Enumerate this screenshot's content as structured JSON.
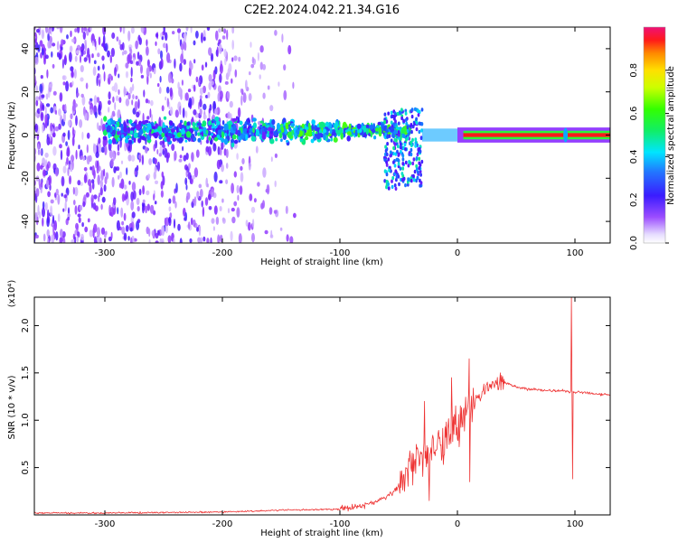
{
  "title": "C2E2.2024.042.21.34.G16",
  "colors": {
    "snr_line": "#ee3333",
    "spectrum_low": "#ece2ff",
    "spectrum_mid": "#7a1df2",
    "spectrum_high": "#e8155f"
  },
  "chart_data": [
    {
      "type": "heatmap",
      "title": "",
      "xlabel": "Height of straight line (km)",
      "ylabel": "Frequency (Hz)",
      "xlim": [
        -360,
        130
      ],
      "ylim": [
        -50,
        50
      ],
      "x_ticks": [
        -300,
        -200,
        -100,
        0,
        100
      ],
      "y_ticks": [
        -40,
        -20,
        0,
        20,
        40
      ],
      "grid": false,
      "colorbar": {
        "label": "Normalized spectral amplitude",
        "range": [
          0,
          1
        ],
        "ticks": [
          "0.0",
          "0.2",
          "0.4",
          "0.6",
          "0.8"
        ],
        "colormap": "rainbow (purple-blue-cyan-green-yellow-orange-red-pink)"
      },
      "features": [
        {
          "x_range": [
            -360,
            -130
          ],
          "freq_range_hz": [
            -50,
            50
          ],
          "amplitude": "0.1-0.4",
          "note": "scattered broadband noise"
        },
        {
          "x_range": [
            -300,
            -40
          ],
          "freq_center_hz": 2,
          "amplitude": "0.4-0.6",
          "note": "narrow band near 0 Hz"
        },
        {
          "x_range": [
            -60,
            -30
          ],
          "freq_range_hz": [
            -25,
            12
          ],
          "amplitude": "0.4-0.6",
          "note": "fan-shaped spread"
        },
        {
          "x_range": [
            0,
            130
          ],
          "freq_center_hz": 0,
          "amplitude": "0.9-1.0",
          "note": "solid tone at 0 Hz"
        },
        {
          "x": 92,
          "freq_range_hz": [
            -5,
            5
          ],
          "amplitude": "0.5",
          "note": "spike"
        }
      ]
    },
    {
      "type": "line",
      "title": "",
      "xlabel": "Height of straight line (km)",
      "ylabel": "SNR (10 * v/v)",
      "y_multiplier": "(x10⁴)",
      "xlim": [
        -360,
        130
      ],
      "ylim": [
        0,
        2.3
      ],
      "x_ticks": [
        -300,
        -200,
        -100,
        0,
        100
      ],
      "y_ticks": [
        "0.5",
        "1.0",
        "1.5",
        "2.0"
      ],
      "grid": false,
      "series": [
        {
          "x": [
            -360,
            -300,
            -200,
            -150,
            -100,
            -80,
            -60,
            -50,
            -40,
            -30,
            -20,
            -10,
            0,
            10,
            20,
            30,
            40,
            50,
            60,
            70,
            80,
            90,
            95,
            100,
            110,
            120,
            130
          ],
          "values": [
            0.02,
            0.02,
            0.03,
            0.05,
            0.06,
            0.1,
            0.18,
            0.3,
            0.55,
            0.65,
            0.75,
            0.85,
            0.95,
            1.15,
            1.3,
            1.37,
            1.4,
            1.35,
            1.33,
            1.32,
            1.31,
            1.31,
            1.3,
            1.3,
            1.29,
            1.28,
            1.27
          ],
          "spikes": [
            {
              "x": -28,
              "y": 1.2
            },
            {
              "x": -24,
              "y": 0.15
            },
            {
              "x": -5,
              "y": 1.45
            },
            {
              "x": 10,
              "y": 1.65
            },
            {
              "x": 10.5,
              "y": 0.35
            },
            {
              "x": 97,
              "y": 2.3
            },
            {
              "x": 98,
              "y": 0.38
            }
          ]
        }
      ]
    }
  ]
}
